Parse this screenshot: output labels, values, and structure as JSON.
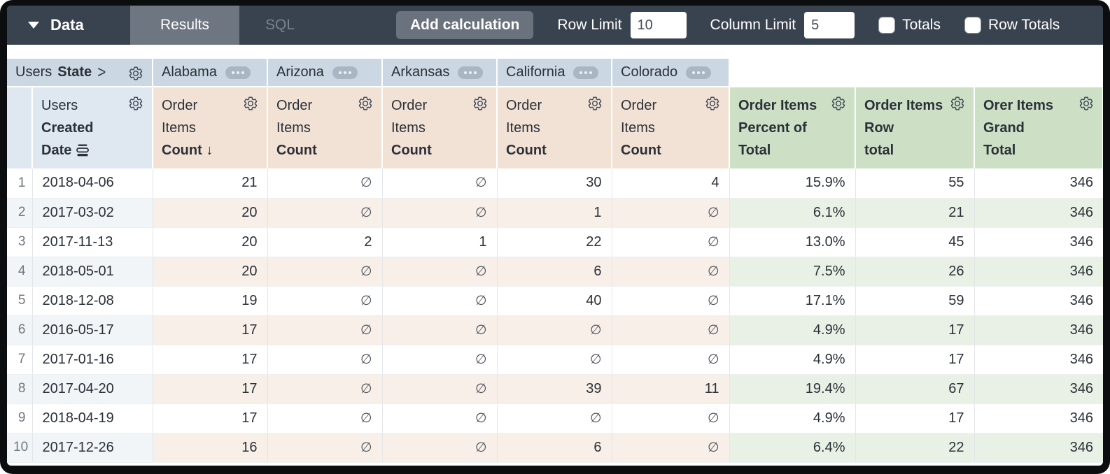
{
  "toolbar": {
    "data_label": "Data",
    "tabs": [
      {
        "label": "Results",
        "active": true
      },
      {
        "label": "SQL",
        "active": false
      }
    ],
    "add_calculation_label": "Add calculation",
    "row_limit": {
      "label": "Row Limit",
      "value": "10"
    },
    "column_limit": {
      "label": "Column Limit",
      "value": "5"
    },
    "totals": {
      "label": "Totals",
      "checked": false
    },
    "row_totals": {
      "label": "Row Totals",
      "checked": false
    }
  },
  "pivot": {
    "view": "Users",
    "field": "State",
    "values": [
      "Alabama",
      "Arizona",
      "Arkansas",
      "California",
      "Colorado"
    ]
  },
  "headers": {
    "row_dimension": {
      "view": "Users",
      "line2": "Created",
      "line3": "Date"
    },
    "measure": {
      "view": "Order",
      "line2": "Items",
      "line3": "Count"
    },
    "sort_arrow": "↓",
    "calc_columns": [
      {
        "line1": "Order Items",
        "line2": "Percent of",
        "line3": "Total"
      },
      {
        "line1": "Order Items",
        "line2": "Row",
        "line3": "total"
      },
      {
        "line1": "Orer Items",
        "line2": "Grand",
        "line3": "Total"
      }
    ]
  },
  "null_symbol": "∅",
  "table": {
    "rows": [
      {
        "n": "1",
        "date": "2018-04-06",
        "values": [
          "21",
          "∅",
          "∅",
          "30",
          "4"
        ],
        "pct": "15.9%",
        "row_total": "55",
        "grand_total": "346"
      },
      {
        "n": "2",
        "date": "2017-03-02",
        "values": [
          "20",
          "∅",
          "∅",
          "1",
          "∅"
        ],
        "pct": "6.1%",
        "row_total": "21",
        "grand_total": "346"
      },
      {
        "n": "3",
        "date": "2017-11-13",
        "values": [
          "20",
          "2",
          "1",
          "22",
          "∅"
        ],
        "pct": "13.0%",
        "row_total": "45",
        "grand_total": "346"
      },
      {
        "n": "4",
        "date": "2018-05-01",
        "values": [
          "20",
          "∅",
          "∅",
          "6",
          "∅"
        ],
        "pct": "7.5%",
        "row_total": "26",
        "grand_total": "346"
      },
      {
        "n": "5",
        "date": "2018-12-08",
        "values": [
          "19",
          "∅",
          "∅",
          "40",
          "∅"
        ],
        "pct": "17.1%",
        "row_total": "59",
        "grand_total": "346"
      },
      {
        "n": "6",
        "date": "2016-05-17",
        "values": [
          "17",
          "∅",
          "∅",
          "∅",
          "∅"
        ],
        "pct": "4.9%",
        "row_total": "17",
        "grand_total": "346"
      },
      {
        "n": "7",
        "date": "2017-01-16",
        "values": [
          "17",
          "∅",
          "∅",
          "∅",
          "∅"
        ],
        "pct": "4.9%",
        "row_total": "17",
        "grand_total": "346"
      },
      {
        "n": "8",
        "date": "2017-04-20",
        "values": [
          "17",
          "∅",
          "∅",
          "39",
          "11"
        ],
        "pct": "19.4%",
        "row_total": "67",
        "grand_total": "346"
      },
      {
        "n": "9",
        "date": "2018-04-19",
        "values": [
          "17",
          "∅",
          "∅",
          "∅",
          "∅"
        ],
        "pct": "4.9%",
        "row_total": "17",
        "grand_total": "346"
      },
      {
        "n": "10",
        "date": "2017-12-26",
        "values": [
          "16",
          "∅",
          "∅",
          "6",
          "∅"
        ],
        "pct": "6.4%",
        "row_total": "22",
        "grand_total": "346"
      }
    ]
  },
  "colors": {
    "toolbar_bg": "#39434f",
    "active_tab_bg": "#6e7681",
    "pivot_header_bg": "#cbd7e2",
    "dimension_header_bg": "#dfe8f1",
    "measure_header_bg": "#f2e2d5",
    "calc_header_bg": "#cde0c6",
    "even_row_bg": "#f2f5f8",
    "even_row_measure_bg": "#f7efe8",
    "even_row_calc_bg": "#e9f1e6"
  }
}
